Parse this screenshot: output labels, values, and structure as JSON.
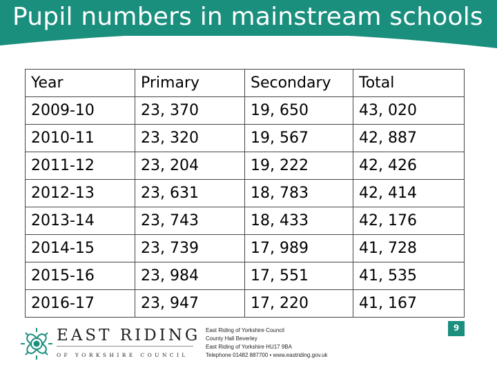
{
  "slide": {
    "title": "Pupil numbers in mainstream schools",
    "accent_color": "#1a8f7e",
    "page_number": "9"
  },
  "table": {
    "headers": [
      "Year",
      "Primary",
      "Secondary",
      "Total"
    ],
    "rows": [
      [
        "2009-10",
        "23, 370",
        "19, 650",
        "43, 020"
      ],
      [
        "2010-11",
        "23, 320",
        "19, 567",
        "42, 887"
      ],
      [
        "2011-12",
        "23, 204",
        "19, 222",
        "42, 426"
      ],
      [
        "2012-13",
        "23, 631",
        "18, 783",
        "42, 414"
      ],
      [
        "2013-14",
        "23, 743",
        "18, 433",
        "42, 176"
      ],
      [
        "2014-15",
        "23, 739",
        "17, 989",
        "41, 728"
      ],
      [
        "2015-16",
        "23, 984",
        "17, 551",
        "41, 535"
      ],
      [
        "2016-17",
        "23, 947",
        "17, 220",
        "41, 167"
      ]
    ]
  },
  "footer": {
    "logo_icon": "rose-emblem-icon",
    "brand_line1": "EAST RIDING",
    "brand_line2": "OF YORKSHIRE COUNCIL",
    "address": [
      "East Riding of Yorkshire Council",
      "County Hall Beverley",
      "East Riding of Yorkshire HU17 9BA",
      "Telephone 01482 887700 • www.eastriding.gov.uk"
    ]
  }
}
